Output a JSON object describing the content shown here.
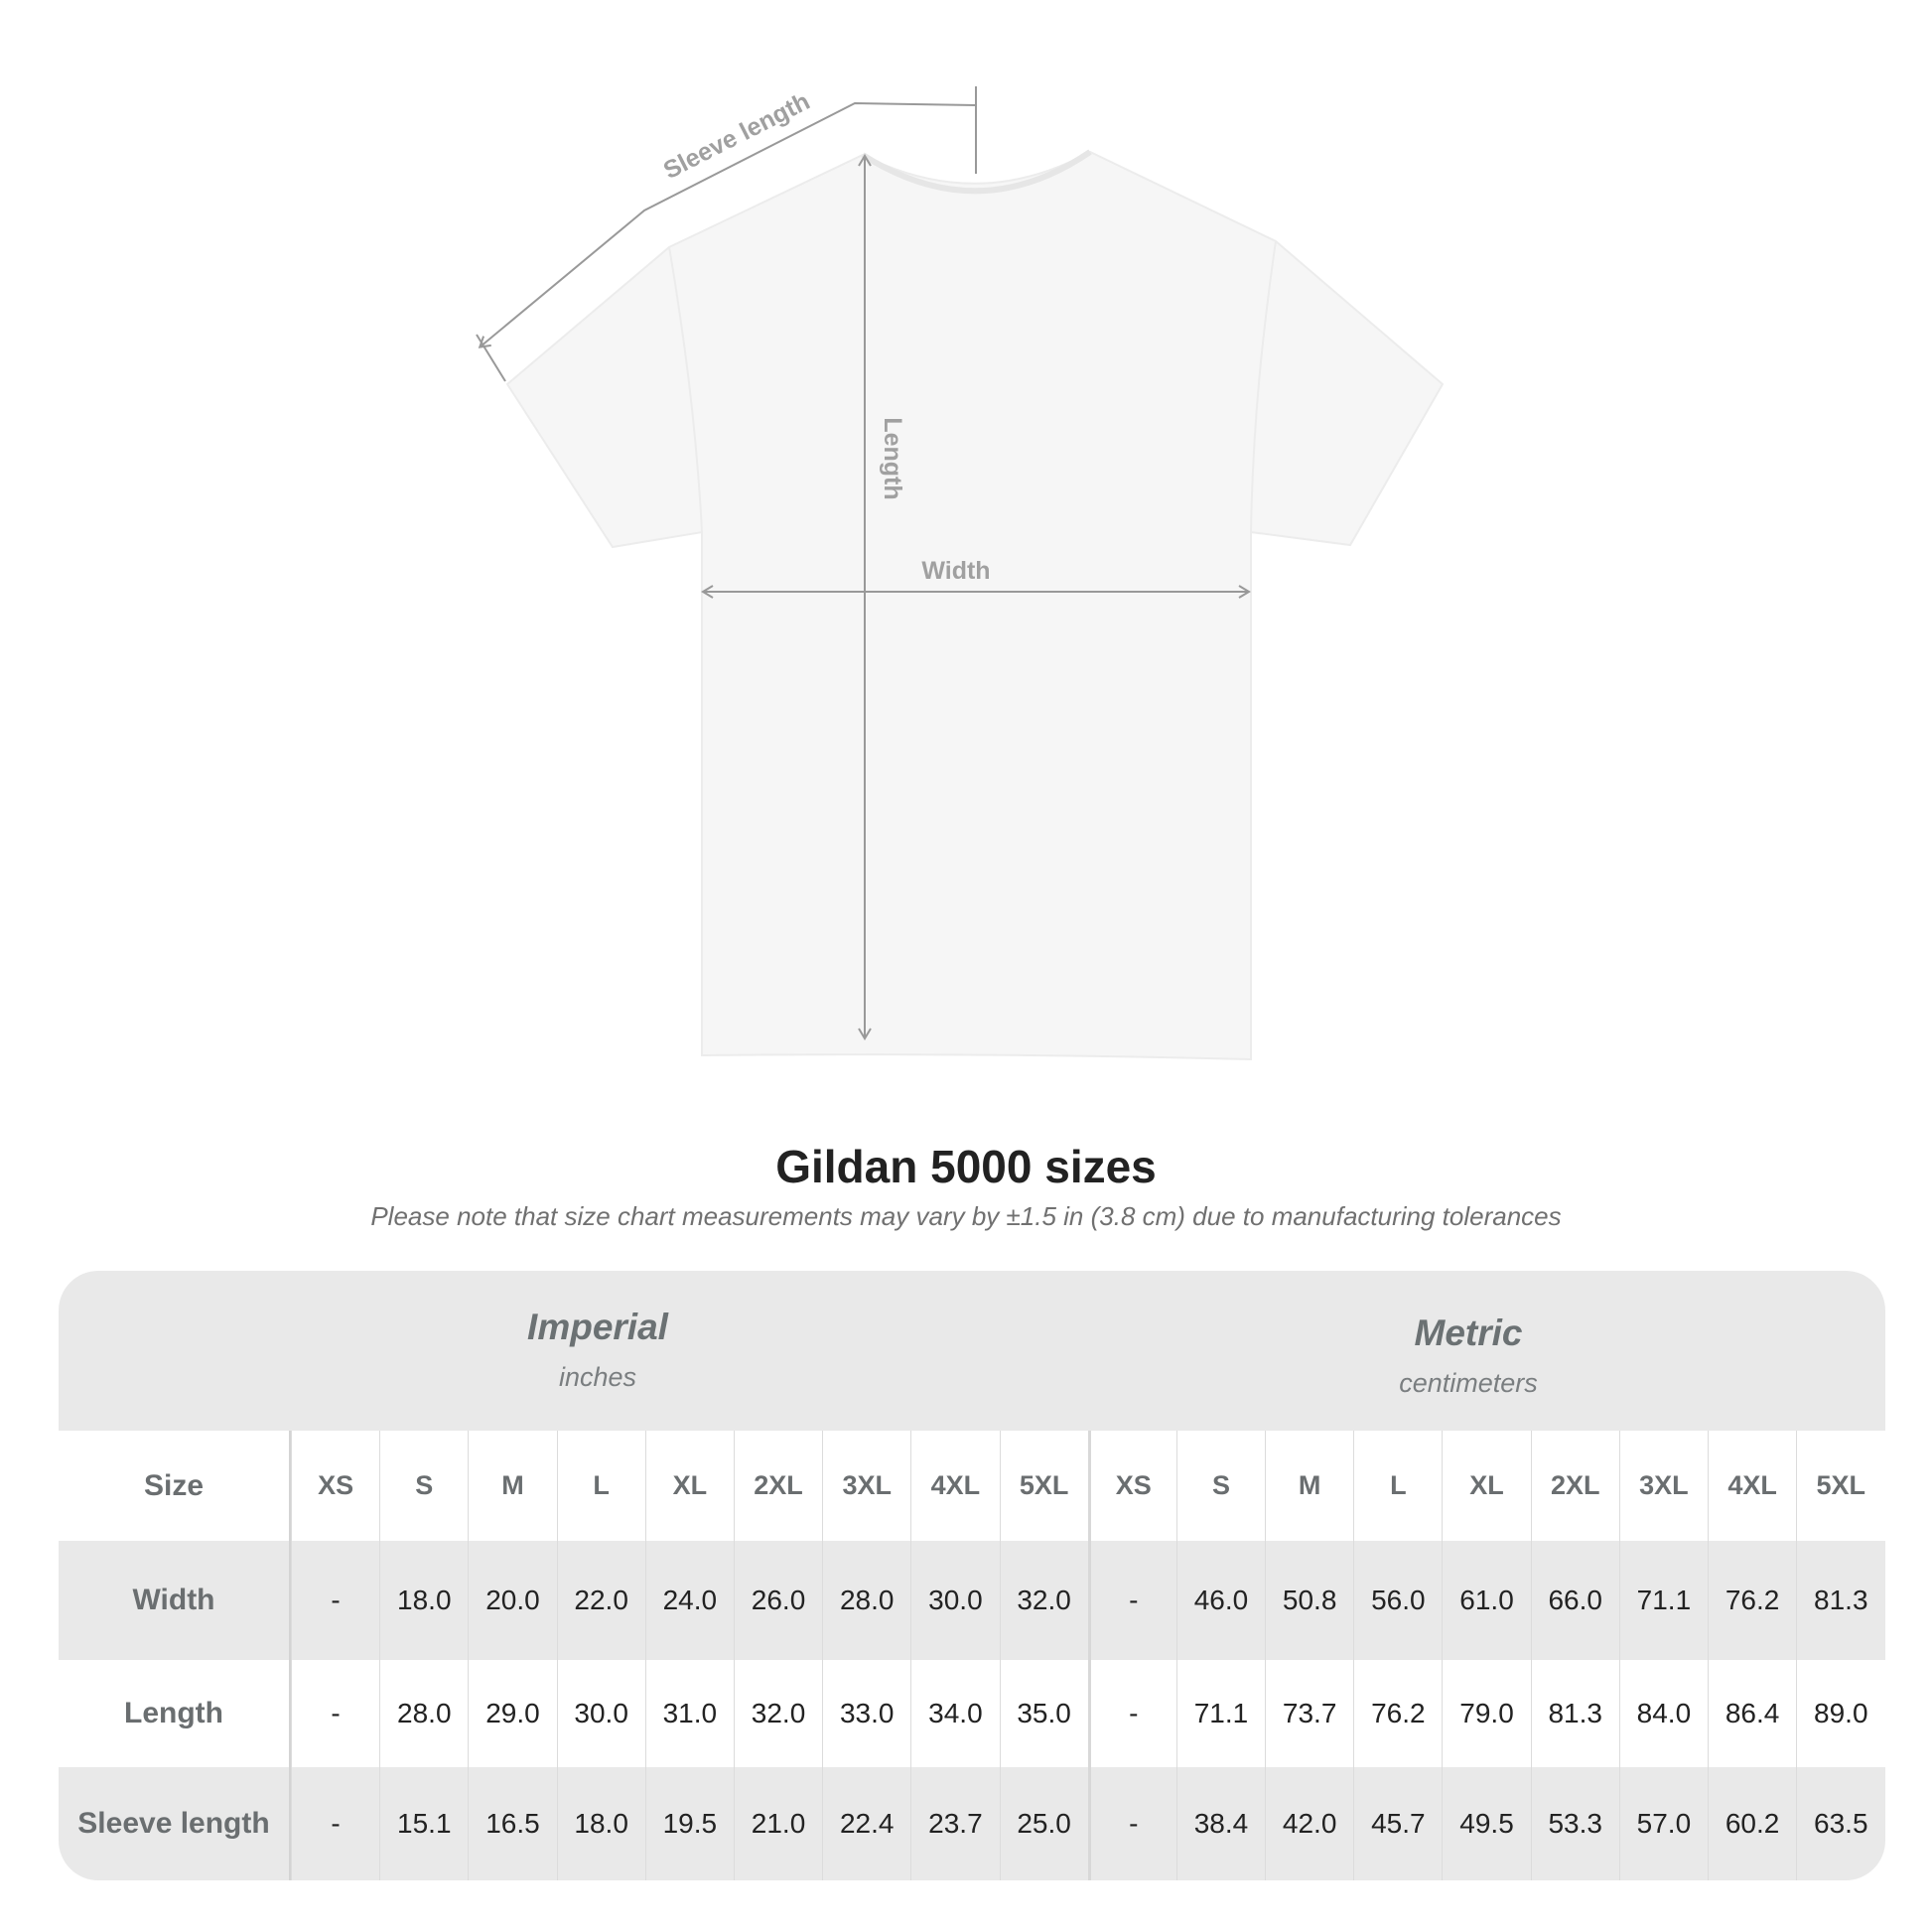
{
  "diagram": {
    "sleeve_label": "Sleeve length",
    "length_label": "Length",
    "width_label": "Width"
  },
  "title": "Gildan 5000 sizes",
  "subtitle": "Please note that size chart measurements may vary by ±1.5 in (3.8 cm) due to manufacturing tolerances",
  "table": {
    "imperial": {
      "name": "Imperial",
      "unit": "inches"
    },
    "metric": {
      "name": "Metric",
      "unit": "centimeters"
    },
    "size_label": "Size",
    "sizes": [
      "XS",
      "S",
      "M",
      "L",
      "XL",
      "2XL",
      "3XL",
      "4XL",
      "5XL"
    ],
    "rows": [
      {
        "label": "Width",
        "imperial": [
          "-",
          "18.0",
          "20.0",
          "22.0",
          "24.0",
          "26.0",
          "28.0",
          "30.0",
          "32.0"
        ],
        "metric": [
          "-",
          "46.0",
          "50.8",
          "56.0",
          "61.0",
          "66.0",
          "71.1",
          "76.2",
          "81.3"
        ]
      },
      {
        "label": "Length",
        "imperial": [
          "-",
          "28.0",
          "29.0",
          "30.0",
          "31.0",
          "32.0",
          "33.0",
          "34.0",
          "35.0"
        ],
        "metric": [
          "-",
          "71.1",
          "73.7",
          "76.2",
          "79.0",
          "81.3",
          "84.0",
          "86.4",
          "89.0"
        ]
      },
      {
        "label": "Sleeve length",
        "imperial": [
          "-",
          "15.1",
          "16.5",
          "18.0",
          "19.5",
          "21.0",
          "22.4",
          "23.7",
          "25.0"
        ],
        "metric": [
          "-",
          "38.4",
          "42.0",
          "45.7",
          "49.5",
          "53.3",
          "57.0",
          "60.2",
          "63.5"
        ]
      }
    ]
  }
}
